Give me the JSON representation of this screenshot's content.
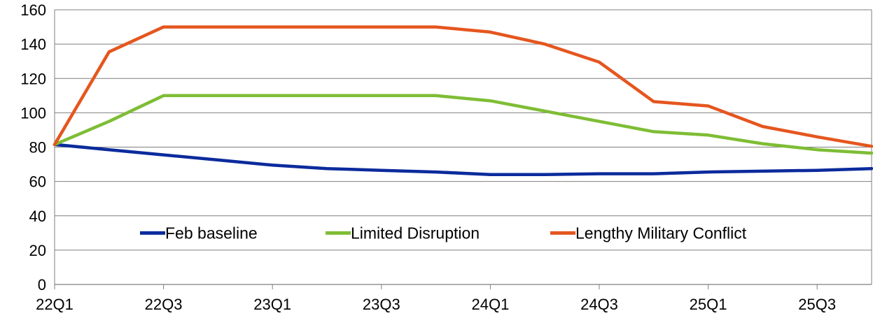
{
  "chart_data": {
    "type": "line",
    "title": "",
    "xlabel": "",
    "ylabel": "",
    "x": [
      "22Q1",
      "22Q2",
      "22Q3",
      "22Q4",
      "23Q1",
      "23Q2",
      "23Q3",
      "23Q4",
      "24Q1",
      "24Q2",
      "24Q3",
      "24Q4",
      "25Q1",
      "25Q2",
      "25Q3",
      "25Q4"
    ],
    "x_tick_labels": [
      "22Q1",
      "22Q3",
      "23Q1",
      "23Q3",
      "24Q1",
      "24Q3",
      "25Q1",
      "25Q3"
    ],
    "ylim": [
      0,
      160
    ],
    "y_ticks": [
      0,
      20,
      40,
      60,
      80,
      100,
      120,
      140,
      160
    ],
    "grid": "horizontal",
    "legend_position": "bottom-center",
    "series": [
      {
        "name": "Feb baseline",
        "color": "#0b2b9c",
        "values": [
          81.5,
          78.5,
          75.5,
          72.5,
          69.5,
          67.5,
          66.5,
          65.5,
          64,
          64,
          64.5,
          64.5,
          65.5,
          66,
          66.5,
          67.5
        ]
      },
      {
        "name": "Limited Disruption",
        "color": "#7ebd35",
        "values": [
          81.5,
          95,
          110,
          110,
          110,
          110,
          110,
          110,
          107,
          101,
          95,
          89,
          87,
          82,
          78.5,
          76.5
        ]
      },
      {
        "name": "Lengthy Military Conflict",
        "color": "#e5561f",
        "values": [
          81.5,
          135.5,
          150,
          150,
          150,
          150,
          150,
          150,
          147,
          140,
          129.5,
          106.5,
          104,
          92,
          86,
          80.5
        ]
      }
    ]
  }
}
